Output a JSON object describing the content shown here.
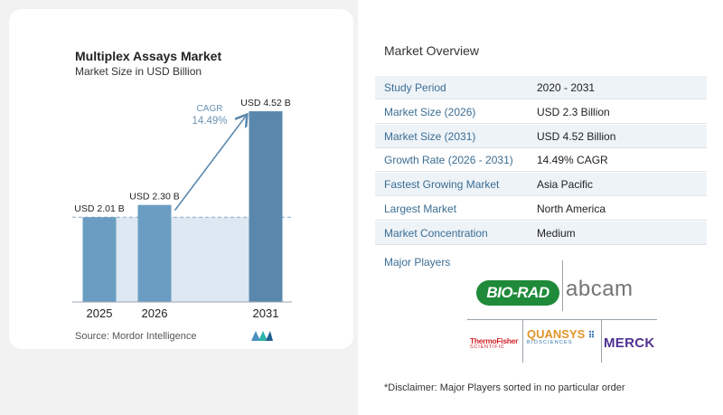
{
  "chart_data": {
    "type": "bar",
    "title": "Multiplex Assays Market",
    "subtitle": "Market Size in USD Billion",
    "categories": [
      "2025",
      "2026",
      "2031"
    ],
    "values": [
      2.01,
      2.3,
      4.52
    ],
    "value_labels": [
      "USD 2.01 B",
      "USD 2.30 B",
      "USD 4.52 B"
    ],
    "cagr_label": "CAGR",
    "cagr_value": "14.49%",
    "ylim": [
      0,
      4.8
    ],
    "grid": false,
    "colors": {
      "bar": "#6a9dc1",
      "bar_dark": "#5a88ad",
      "band": "#dde8f2",
      "arrow": "#5a88ad"
    }
  },
  "source": "Source:  Mordor Intelligence",
  "overview": {
    "title": "Market Overview",
    "rows": [
      {
        "key": "Study Period",
        "value": "2020 - 2031"
      },
      {
        "key": "Market Size (2026)",
        "value": "USD 2.3 Billion"
      },
      {
        "key": "Market Size (2031)",
        "value": "USD 4.52 Billion"
      },
      {
        "key": "Growth Rate (2026 - 2031)",
        "value": "14.49% CAGR"
      },
      {
        "key": "Fastest Growing Market",
        "value": "Asia Pacific"
      },
      {
        "key": "Largest Market",
        "value": "North America"
      },
      {
        "key": "Market Concentration",
        "value": "Medium"
      }
    ]
  },
  "players": {
    "label": "Major Players",
    "logos": {
      "biorad": "BIO-RAD",
      "abcam": "abcam",
      "thermo_top": "ThermoFisher",
      "thermo_bottom": "SCIENTIFIC",
      "quansys_top": "QUANSYS",
      "quansys_bottom": "BIOSCIENCES",
      "merck": "MERCK"
    }
  },
  "disclaimer": "*Disclaimer: Major Players sorted in no particular order"
}
